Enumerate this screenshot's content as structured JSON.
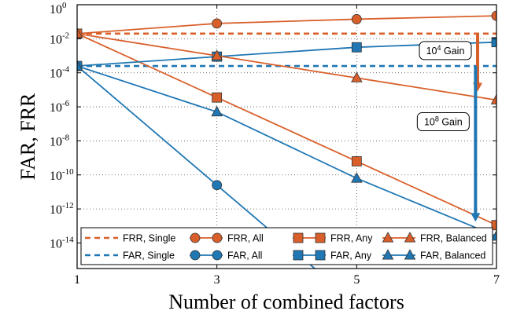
{
  "chart_data": {
    "type": "line",
    "xlabel": "Number of combined factors",
    "ylabel": "FAR, FRR",
    "xlim": [
      1,
      7
    ],
    "ylim_log10": [
      -15.5,
      0
    ],
    "y_scale": "log",
    "grid": "dotted",
    "legend_placement": "bottom",
    "x_ticks": [
      1,
      3,
      5,
      7
    ],
    "y_tick_exponents": [
      0,
      -2,
      -4,
      -6,
      -8,
      -10,
      -12,
      -14
    ],
    "y_tick_base": "10",
    "colors": {
      "frr": "#d95f2a",
      "far": "#1f77b4"
    },
    "series": [
      {
        "name": "FRR, Single",
        "kind": "frr",
        "marker": "none",
        "dashed": true,
        "x": [
          1,
          7
        ],
        "log10_y": [
          -1.7,
          -1.7
        ]
      },
      {
        "name": "FAR, Single",
        "kind": "far",
        "marker": "none",
        "dashed": true,
        "x": [
          1,
          7
        ],
        "log10_y": [
          -3.6,
          -3.6
        ]
      },
      {
        "name": "FRR, All",
        "kind": "frr",
        "marker": "circle",
        "dashed": false,
        "x": [
          1,
          3,
          5,
          7
        ],
        "log10_y": [
          -1.7,
          -1.1,
          -0.85,
          -0.65
        ]
      },
      {
        "name": "FAR, All",
        "kind": "far",
        "marker": "circle",
        "dashed": false,
        "x": [
          1,
          3,
          5
        ],
        "log10_y": [
          -3.6,
          -10.6,
          -17.6
        ]
      },
      {
        "name": "FRR, Any",
        "kind": "frr",
        "marker": "square",
        "dashed": false,
        "x": [
          1,
          3,
          5,
          7
        ],
        "log10_y": [
          -1.7,
          -5.45,
          -9.2,
          -12.95
        ]
      },
      {
        "name": "FAR, Any",
        "kind": "far",
        "marker": "square",
        "dashed": false,
        "x": [
          1,
          3,
          5,
          7
        ],
        "log10_y": [
          -3.6,
          -3.05,
          -2.5,
          -2.2
        ]
      },
      {
        "name": "FRR, Balanced",
        "kind": "frr",
        "marker": "triangle",
        "dashed": false,
        "x": [
          1,
          3,
          5,
          7
        ],
        "log10_y": [
          -1.7,
          -3.0,
          -4.3,
          -5.6
        ]
      },
      {
        "name": "FAR, Balanced",
        "kind": "far",
        "marker": "triangle",
        "dashed": false,
        "x": [
          1,
          3,
          5,
          7
        ],
        "log10_y": [
          -3.6,
          -6.3,
          -10.2,
          -13.6
        ]
      }
    ],
    "annotations": [
      {
        "label_base": "10",
        "label_exp": "4",
        "label_suffix": " Gain",
        "kind": "frr",
        "x": 6.73,
        "from_log10": -1.7,
        "to_log10": -5.1
      },
      {
        "label_base": "10",
        "label_exp": "8",
        "label_suffix": " Gain",
        "kind": "far",
        "x": 6.7,
        "from_log10": -3.6,
        "to_log10": -12.75
      }
    ]
  }
}
